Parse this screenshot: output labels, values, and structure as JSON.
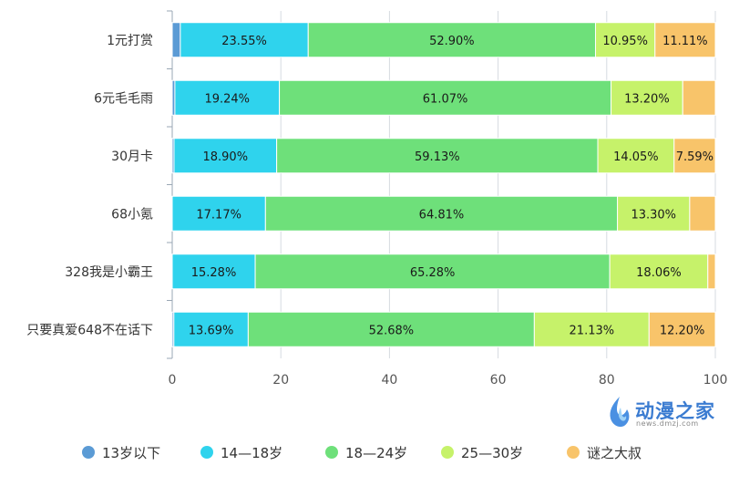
{
  "chart_data": {
    "type": "bar",
    "orientation": "horizontal",
    "stacked": true,
    "categories": [
      "1元打赏",
      "6元毛毛雨",
      "30月卡",
      "68小氪",
      "328我是小霸王",
      "只要真爱648不在话下"
    ],
    "series": [
      {
        "name": "13岁以下",
        "color": "#5b9bd5",
        "values": [
          1.49,
          0.49,
          0.33,
          0.0,
          0.0,
          0.3
        ]
      },
      {
        "name": "14—18岁",
        "color": "#2fd3ed",
        "values": [
          23.55,
          19.24,
          18.9,
          17.17,
          15.28,
          13.69
        ]
      },
      {
        "name": "18—24岁",
        "color": "#6ee07a",
        "values": [
          52.9,
          61.07,
          59.13,
          64.81,
          65.28,
          52.68
        ]
      },
      {
        "name": "25—30岁",
        "color": "#c6f26a",
        "values": [
          10.95,
          13.2,
          14.05,
          13.3,
          18.06,
          21.13
        ]
      },
      {
        "name": "谜之大叔",
        "color": "#f8c46a",
        "values": [
          11.11,
          6.0,
          7.59,
          4.72,
          1.38,
          12.2
        ]
      }
    ],
    "data_labels": [
      [
        "",
        "23.55%",
        "52.90%",
        "10.95%",
        "11.11%"
      ],
      [
        "",
        "19.24%",
        "61.07%",
        "13.20%",
        ""
      ],
      [
        "",
        "18.90%",
        "59.13%",
        "14.05%",
        "7.59%"
      ],
      [
        "",
        "17.17%",
        "64.81%",
        "13.30%",
        ""
      ],
      [
        "",
        "15.28%",
        "65.28%",
        "18.06%",
        ""
      ],
      [
        "",
        "13.69%",
        "52.68%",
        "21.13%",
        "12.20%"
      ]
    ],
    "x_ticks": [
      "0",
      "20",
      "40",
      "60",
      "80",
      "100"
    ],
    "xlim": [
      0,
      100
    ],
    "legend_position": "bottom",
    "grid": true
  },
  "watermark": {
    "text": "动漫之家",
    "url": "news.dmzj.com"
  }
}
